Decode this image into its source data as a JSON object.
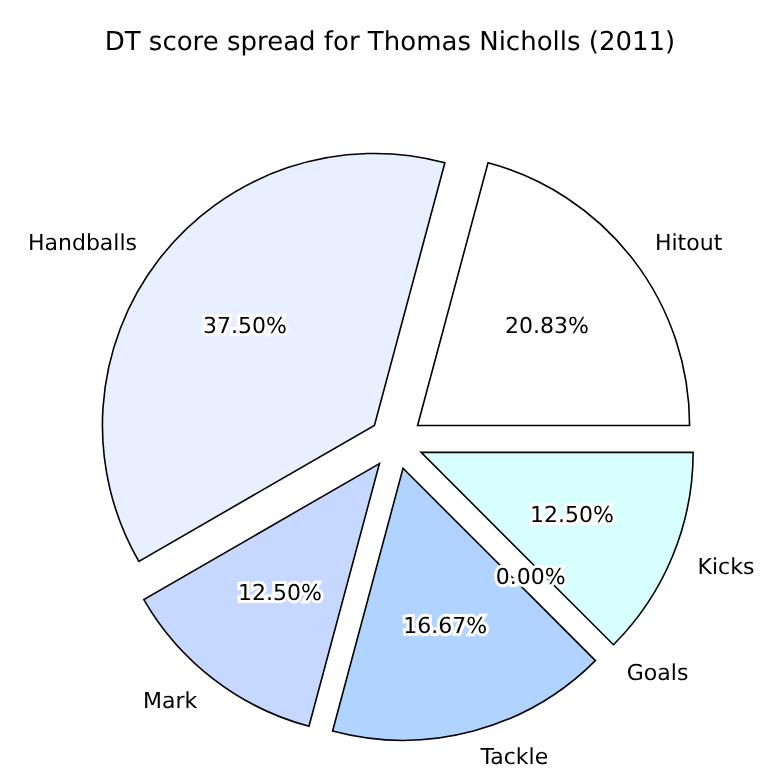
{
  "chart_data": {
    "type": "pie",
    "title": "DT score spread for Thomas Nicholls (2011)",
    "categories": [
      "Hitout",
      "Handballs",
      "Mark",
      "Tackle",
      "Goals",
      "Kicks"
    ],
    "values": [
      20.83,
      37.5,
      12.5,
      16.67,
      0,
      12.5
    ],
    "value_labels": [
      "20.83%",
      "37.50%",
      "12.50%",
      "16.67%",
      "0.00%",
      "12.50%"
    ],
    "colors": [
      "#ffffff",
      "#e8f0ff",
      "#c6d8ff",
      "#b0d4ff",
      "#add8e6",
      "#d8ffff"
    ],
    "legend": false
  }
}
